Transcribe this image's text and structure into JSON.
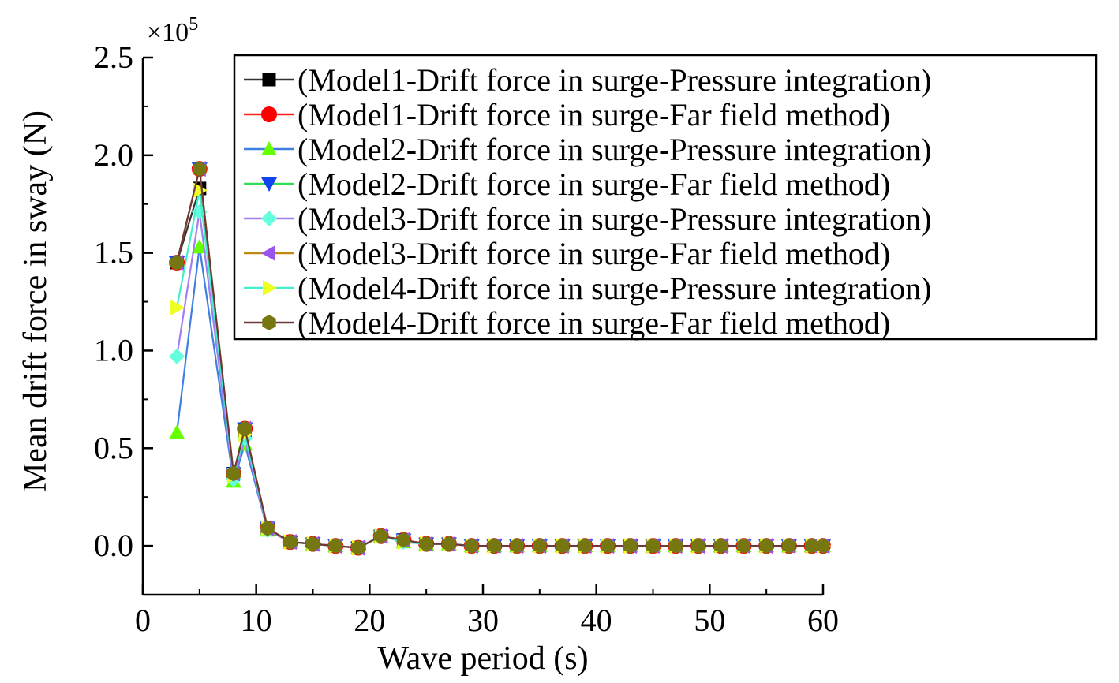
{
  "chart_data": {
    "type": "line",
    "title": "",
    "xlabel": "Wave period (s)",
    "ylabel": "Mean drift force in sway (N)",
    "y_multiplier": "×10",
    "y_multiplier_exponent": "5",
    "xlim": [
      0,
      60
    ],
    "ylim": [
      -0.25,
      2.5
    ],
    "x_ticks": [
      "0",
      "10",
      "20",
      "30",
      "40",
      "50",
      "60"
    ],
    "y_ticks": [
      "0.0",
      "0.5",
      "1.0",
      "1.5",
      "2.0",
      "2.5"
    ],
    "grid": false,
    "legend_position": "top-right",
    "x": [
      3,
      5,
      8,
      9,
      11,
      13,
      15,
      17,
      19,
      21,
      23,
      25,
      27,
      29,
      31,
      33,
      35,
      37,
      39,
      41,
      43,
      45,
      47,
      49,
      51,
      53,
      55,
      57,
      59,
      60
    ],
    "series": [
      {
        "name": "(Model1-Drift force in surge-Pressure integration)",
        "color": "#333333",
        "marker": "square",
        "marker_color": "#000000",
        "values": [
          1.45,
          1.83,
          0.37,
          0.59,
          0.09,
          0.02,
          0.01,
          0.0,
          -0.01,
          0.05,
          0.03,
          0.01,
          0.01,
          0.0,
          0.0,
          0.0,
          0.0,
          0.0,
          0.0,
          0.0,
          0.0,
          0.0,
          0.0,
          0.0,
          0.0,
          0.0,
          0.0,
          0.0,
          0.0,
          0.0
        ]
      },
      {
        "name": "(Model1-Drift force in surge-Far field method)",
        "color": "#ff2020",
        "marker": "circle",
        "marker_color": "#ff0000",
        "values": [
          1.45,
          1.93,
          0.37,
          0.6,
          0.09,
          0.02,
          0.01,
          0.0,
          -0.01,
          0.05,
          0.03,
          0.01,
          0.01,
          0.0,
          0.0,
          0.0,
          0.0,
          0.0,
          0.0,
          0.0,
          0.0,
          0.0,
          0.0,
          0.0,
          0.0,
          0.0,
          0.0,
          0.0,
          0.0,
          0.0
        ]
      },
      {
        "name": "(Model2-Drift force in surge-Pressure integration)",
        "color": "#3f7fe0",
        "marker": "triangle-up",
        "marker_color": "#66ff00",
        "values": [
          0.58,
          1.53,
          0.33,
          0.52,
          0.08,
          0.02,
          0.01,
          0.0,
          -0.01,
          0.05,
          0.02,
          0.01,
          0.01,
          0.0,
          0.0,
          0.0,
          0.0,
          0.0,
          0.0,
          0.0,
          0.0,
          0.0,
          0.0,
          0.0,
          0.0,
          0.0,
          0.0,
          0.0,
          0.0,
          0.0
        ]
      },
      {
        "name": "(Model2-Drift force in surge-Far field method)",
        "color": "#33dd55",
        "marker": "triangle-down",
        "marker_color": "#1144ee",
        "values": [
          1.45,
          1.93,
          0.37,
          0.6,
          0.09,
          0.02,
          0.01,
          0.0,
          -0.01,
          0.05,
          0.03,
          0.01,
          0.01,
          0.0,
          0.0,
          0.0,
          0.0,
          0.0,
          0.0,
          0.0,
          0.0,
          0.0,
          0.0,
          0.0,
          0.0,
          0.0,
          0.0,
          0.0,
          0.0,
          0.0
        ]
      },
      {
        "name": "(Model3-Drift force in surge-Pressure integration)",
        "color": "#a07ff0",
        "marker": "diamond",
        "marker_color": "#66ffdd",
        "values": [
          0.97,
          1.71,
          0.34,
          0.55,
          0.08,
          0.02,
          0.01,
          0.0,
          -0.01,
          0.05,
          0.02,
          0.01,
          0.01,
          0.0,
          0.0,
          0.0,
          0.0,
          0.0,
          0.0,
          0.0,
          0.0,
          0.0,
          0.0,
          0.0,
          0.0,
          0.0,
          0.0,
          0.0,
          0.0,
          0.0
        ]
      },
      {
        "name": "(Model3-Drift force in surge-Far field method)",
        "color": "#c08a10",
        "marker": "triangle-left",
        "marker_color": "#9955ee",
        "values": [
          1.45,
          1.93,
          0.37,
          0.6,
          0.09,
          0.02,
          0.01,
          0.0,
          -0.01,
          0.05,
          0.03,
          0.01,
          0.01,
          0.0,
          0.0,
          0.0,
          0.0,
          0.0,
          0.0,
          0.0,
          0.0,
          0.0,
          0.0,
          0.0,
          0.0,
          0.0,
          0.0,
          0.0,
          0.0,
          0.0
        ]
      },
      {
        "name": "(Model4-Drift force in surge-Pressure integration)",
        "color": "#44eecc",
        "marker": "triangle-right",
        "marker_color": "#eeff22",
        "values": [
          1.22,
          1.82,
          0.36,
          0.57,
          0.09,
          0.02,
          0.01,
          0.0,
          -0.01,
          0.05,
          0.02,
          0.01,
          0.01,
          0.0,
          0.0,
          0.0,
          0.0,
          0.0,
          0.0,
          0.0,
          0.0,
          0.0,
          0.0,
          0.0,
          0.0,
          0.0,
          0.0,
          0.0,
          0.0,
          0.0
        ]
      },
      {
        "name": "(Model4-Drift force in surge-Far field method)",
        "color": "#703838",
        "marker": "hexagon",
        "marker_color": "#777711",
        "values": [
          1.45,
          1.93,
          0.37,
          0.6,
          0.09,
          0.02,
          0.01,
          0.0,
          -0.01,
          0.05,
          0.03,
          0.01,
          0.01,
          0.0,
          0.0,
          0.0,
          0.0,
          0.0,
          0.0,
          0.0,
          0.0,
          0.0,
          0.0,
          0.0,
          0.0,
          0.0,
          0.0,
          0.0,
          0.0,
          0.0
        ]
      }
    ]
  }
}
